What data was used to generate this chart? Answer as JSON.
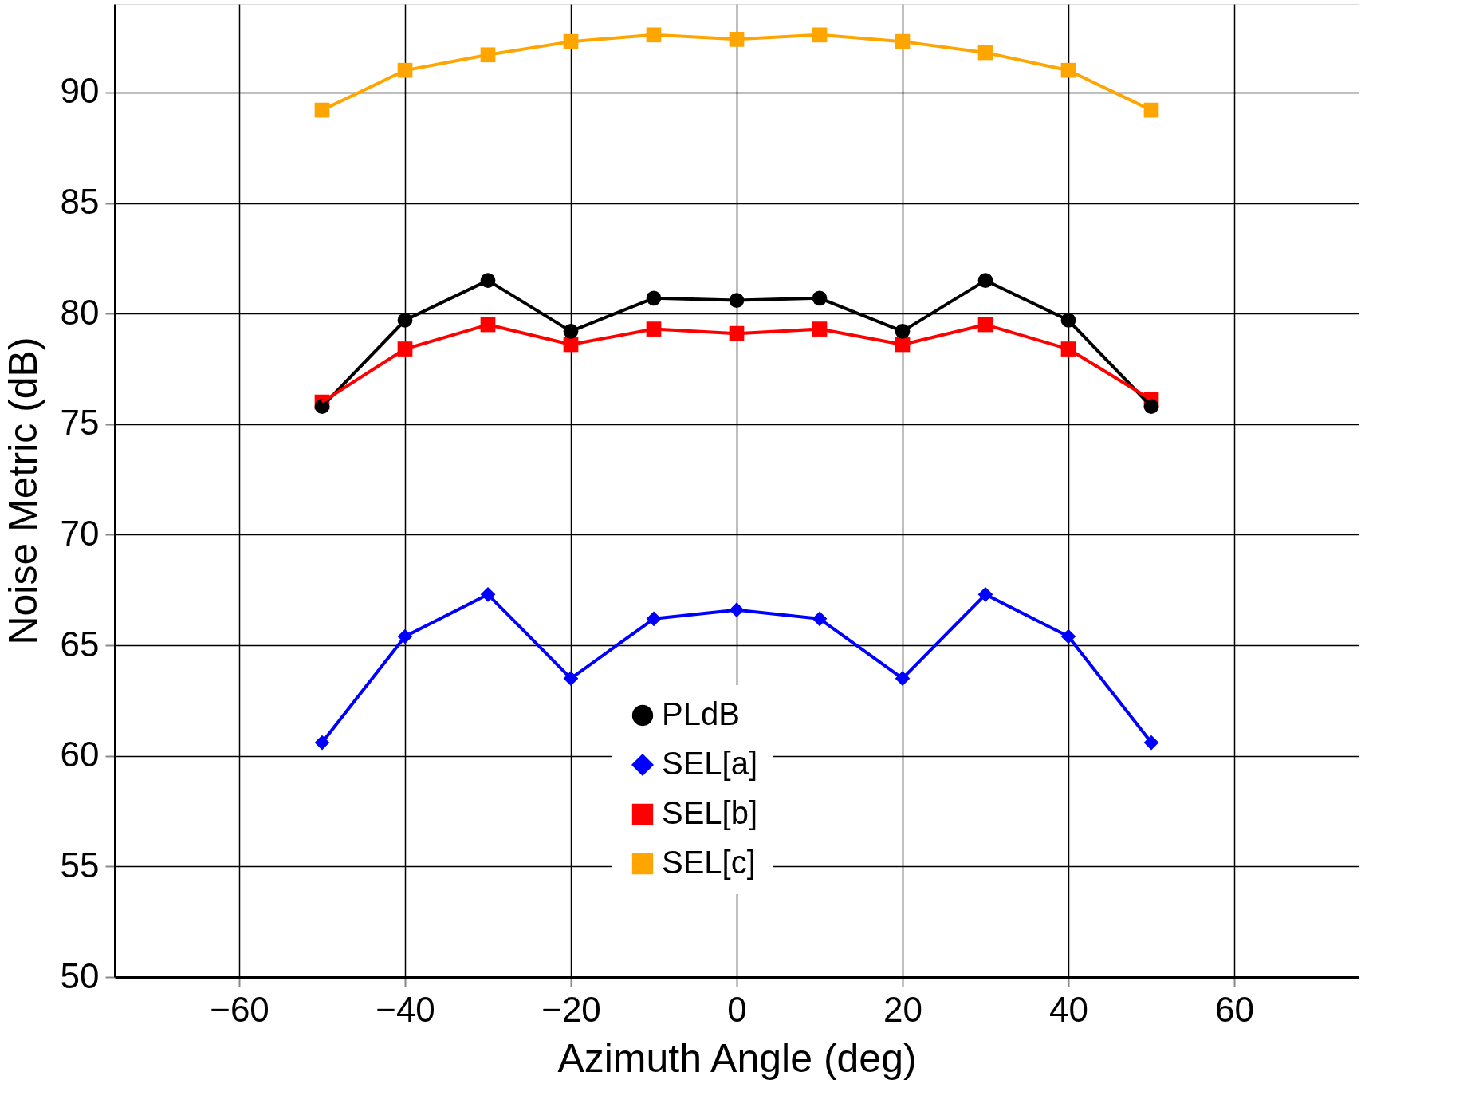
{
  "chart_data": {
    "type": "line",
    "xlabel": "Azimuth Angle (deg)",
    "ylabel": "Noise Metric (dB)",
    "x": [
      -50,
      -40,
      -30,
      -20,
      -10,
      0,
      10,
      20,
      30,
      40,
      50
    ],
    "series": [
      {
        "name": "PLdB",
        "color": "#000000",
        "marker": "circle",
        "values": [
          75.8,
          79.7,
          81.5,
          79.2,
          80.7,
          80.6,
          80.7,
          79.2,
          81.5,
          79.7,
          75.8
        ]
      },
      {
        "name": "SEL[a]",
        "color": "#0000ff",
        "marker": "diamond",
        "values": [
          60.6,
          65.4,
          67.3,
          63.5,
          66.2,
          66.6,
          66.2,
          63.5,
          67.3,
          65.4,
          60.6
        ]
      },
      {
        "name": "SEL[b]",
        "color": "#ff0000",
        "marker": "square",
        "values": [
          76.0,
          78.4,
          79.5,
          78.6,
          79.3,
          79.1,
          79.3,
          78.6,
          79.5,
          78.4,
          76.1
        ]
      },
      {
        "name": "SEL[c]",
        "color": "#ffa500",
        "marker": "square",
        "values": [
          89.2,
          91.0,
          91.7,
          92.3,
          92.6,
          92.4,
          92.6,
          92.3,
          91.8,
          91.0,
          89.2
        ]
      }
    ],
    "xlim": [
      -75,
      75
    ],
    "ylim": [
      50,
      94
    ],
    "xticks": [
      -60,
      -40,
      -20,
      0,
      20,
      40,
      60
    ],
    "yticks": [
      50,
      55,
      60,
      65,
      70,
      75,
      80,
      85,
      90
    ],
    "grid": true,
    "legend": "bottom",
    "line_style": "solid"
  }
}
